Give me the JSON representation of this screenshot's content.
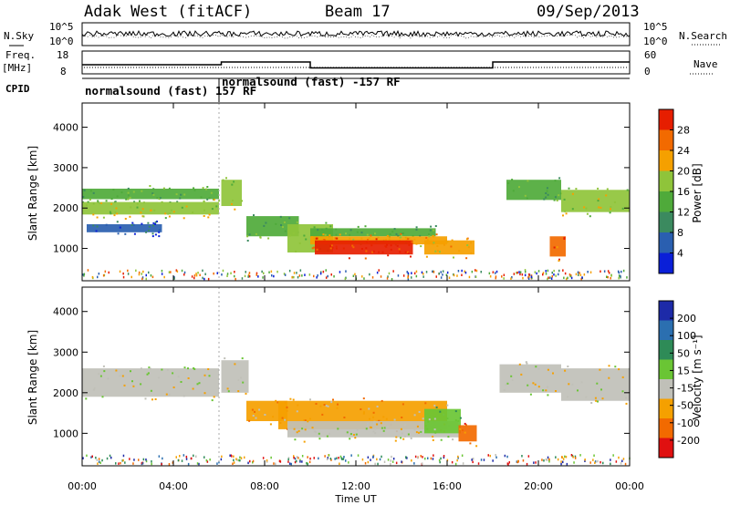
{
  "header": {
    "station": "Adak West (fitACF)",
    "beam": "Beam 17",
    "date": "09/Sep/2013"
  },
  "top_panels": {
    "nsky_label": "N.Sky",
    "nsky_ticks": [
      "10^5",
      "10^0"
    ],
    "nsearch_label": "N.Search",
    "nsearch_ticks": [
      "10^5",
      "10^0"
    ],
    "freq_label": "Freq.",
    "freq_unit": "[MHz]",
    "freq_ticks": [
      "18",
      "8"
    ],
    "nave_label": "Nave",
    "nave_ticks": [
      "60",
      "0"
    ],
    "cpid_label": "CPID",
    "cpid_segments": [
      {
        "label": "normalsound (fast) 157 RF",
        "start_h": 0,
        "end_h": 6
      },
      {
        "label": "normalsound (fast) -157 RF",
        "start_h": 6,
        "end_h": 24
      }
    ],
    "freq_steps": [
      {
        "start_h": 0,
        "end_h": 6.1,
        "value": 12
      },
      {
        "start_h": 6.1,
        "end_h": 10.0,
        "value": 13.2
      },
      {
        "start_h": 10.0,
        "end_h": 18.0,
        "value": 10.6
      },
      {
        "start_h": 18.0,
        "end_h": 24,
        "value": 13.2
      }
    ]
  },
  "power_panel": {
    "ylabel": "Slant Range [km]",
    "cb_label": "Power [dB]",
    "cb_ticks": [
      "28",
      "24",
      "20",
      "16",
      "12",
      "8",
      "4"
    ]
  },
  "velocity_panel": {
    "ylabel": "Slant Range [km]",
    "cb_label": "Velocity [m s⁻¹]",
    "cb_ticks": [
      "200",
      "100",
      "50",
      "15",
      "-15",
      "-50",
      "-100",
      "-200"
    ]
  },
  "colors": {
    "power": [
      "#0a1fd8",
      "#2a5fb0",
      "#3b8a5f",
      "#4faa3a",
      "#8fc43a",
      "#f5a000",
      "#f26a00",
      "#e61e00"
    ],
    "velocity": [
      "#1d2aa8",
      "#2b6fb0",
      "#2e8b57",
      "#6ac534",
      "#c0c0b8",
      "#f5a000",
      "#f26a00",
      "#e01010"
    ]
  },
  "chart_data": [
    {
      "type": "heatmap",
      "title": "Power",
      "xlabel": "Time UT",
      "ylabel": "Slant Range [km]",
      "xlim_h": [
        0,
        24
      ],
      "ylim": [
        200,
        4600
      ],
      "x_ticks": [
        "00:00",
        "04:00",
        "08:00",
        "12:00",
        "16:00",
        "20:00",
        "00:00"
      ],
      "y_ticks": [
        1000,
        2000,
        3000,
        4000
      ],
      "bands": [
        {
          "t0": 0.0,
          "t1": 6.0,
          "r0": 2220,
          "r1": 2480,
          "level": 3
        },
        {
          "t0": 0.0,
          "t1": 6.0,
          "r0": 1840,
          "r1": 2150,
          "level": 4
        },
        {
          "t0": 0.2,
          "t1": 3.5,
          "r0": 1400,
          "r1": 1600,
          "level": 1
        },
        {
          "t0": 6.1,
          "t1": 7.0,
          "r0": 2050,
          "r1": 2700,
          "level": 4
        },
        {
          "t0": 7.2,
          "t1": 9.5,
          "r0": 1300,
          "r1": 1800,
          "level": 3
        },
        {
          "t0": 9.0,
          "t1": 11.0,
          "r0": 900,
          "r1": 1600,
          "level": 4
        },
        {
          "t0": 10.0,
          "t1": 15.5,
          "r0": 1300,
          "r1": 1500,
          "level": 3
        },
        {
          "t0": 10.0,
          "t1": 16.0,
          "r0": 1100,
          "r1": 1300,
          "level": 5
        },
        {
          "t0": 10.2,
          "t1": 14.5,
          "r0": 850,
          "r1": 1200,
          "level": 7
        },
        {
          "t0": 15.0,
          "t1": 17.2,
          "r0": 850,
          "r1": 1200,
          "level": 5
        },
        {
          "t0": 18.6,
          "t1": 21.0,
          "r0": 2200,
          "r1": 2700,
          "level": 3
        },
        {
          "t0": 21.0,
          "t1": 24.0,
          "r0": 1900,
          "r1": 2450,
          "level": 4
        },
        {
          "t0": 20.5,
          "t1": 21.2,
          "r0": 800,
          "r1": 1300,
          "level": 6
        }
      ],
      "colorbar_range": [
        0,
        30
      ]
    },
    {
      "type": "heatmap",
      "title": "Velocity",
      "xlabel": "Time UT",
      "ylabel": "Slant Range [km]",
      "xlim_h": [
        0,
        24
      ],
      "ylim": [
        200,
        4600
      ],
      "x_ticks": [
        "00:00",
        "04:00",
        "08:00",
        "12:00",
        "16:00",
        "20:00",
        "00:00"
      ],
      "y_ticks": [
        1000,
        2000,
        3000,
        4000
      ],
      "bands": [
        {
          "t0": 0.0,
          "t1": 6.0,
          "r0": 1900,
          "r1": 2600,
          "level": 4
        },
        {
          "t0": 6.1,
          "t1": 7.3,
          "r0": 2000,
          "r1": 2800,
          "level": 4
        },
        {
          "t0": 7.2,
          "t1": 9.0,
          "r0": 1300,
          "r1": 1800,
          "level": 5
        },
        {
          "t0": 8.6,
          "t1": 16.0,
          "r0": 1100,
          "r1": 1800,
          "level": 5
        },
        {
          "t0": 9.0,
          "t1": 16.5,
          "r0": 900,
          "r1": 1300,
          "level": 4
        },
        {
          "t0": 15.0,
          "t1": 16.6,
          "r0": 1000,
          "r1": 1600,
          "level": 3
        },
        {
          "t0": 16.5,
          "t1": 17.3,
          "r0": 800,
          "r1": 1200,
          "level": 6
        },
        {
          "t0": 18.3,
          "t1": 21.0,
          "r0": 2000,
          "r1": 2700,
          "level": 4
        },
        {
          "t0": 21.0,
          "t1": 24.0,
          "r0": 1800,
          "r1": 2600,
          "level": 4
        }
      ],
      "colorbar_range": [
        -200,
        200
      ]
    }
  ]
}
